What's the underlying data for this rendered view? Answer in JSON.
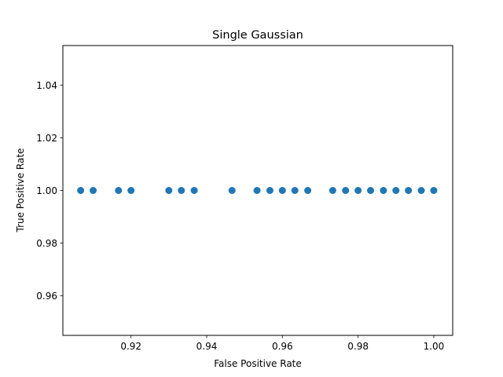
{
  "chart_data": {
    "type": "scatter",
    "title": "Single Gaussian",
    "xlabel": "False Positive Rate",
    "ylabel": "True Positive Rate",
    "xlim": [
      0.902,
      1.005
    ],
    "ylim": [
      0.945,
      1.055
    ],
    "x_ticks": [
      0.92,
      0.94,
      0.96,
      0.98,
      1.0
    ],
    "x_tick_labels": [
      "0.92",
      "0.94",
      "0.96",
      "0.98",
      "1.00"
    ],
    "y_ticks": [
      0.96,
      0.98,
      1.0,
      1.02,
      1.04
    ],
    "y_tick_labels": [
      "0.96",
      "0.98",
      "1.00",
      "1.02",
      "1.04"
    ],
    "grid": false,
    "marker_color": "#1f77b4",
    "series": [
      {
        "x": [
          0.9067,
          0.91,
          0.9167,
          0.92,
          0.93,
          0.9333,
          0.9367,
          0.9467,
          0.9533,
          0.9567,
          0.96,
          0.9633,
          0.9667,
          0.9733,
          0.9767,
          0.98,
          0.9833,
          0.9867,
          0.99,
          0.9933,
          0.9967,
          1.0
        ],
        "y": [
          1.0,
          1.0,
          1.0,
          1.0,
          1.0,
          1.0,
          1.0,
          1.0,
          1.0,
          1.0,
          1.0,
          1.0,
          1.0,
          1.0,
          1.0,
          1.0,
          1.0,
          1.0,
          1.0,
          1.0,
          1.0,
          1.0
        ]
      }
    ]
  }
}
